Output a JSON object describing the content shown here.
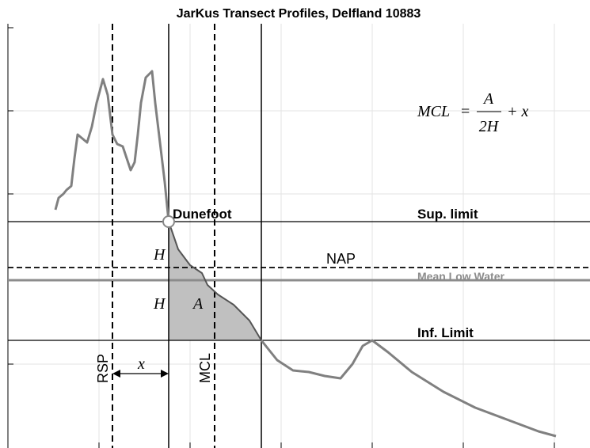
{
  "header": {
    "title": "JarKus Transect Profiles, Delfland 10883"
  },
  "labels": {
    "dunefoot": "Dunefoot",
    "sup_limit": "Sup. limit",
    "nap": "NAP",
    "mlw": "Mean Low Water",
    "inf_limit": "Inf. Limit",
    "rsp": "RSP",
    "mcl": "MCL",
    "h_upper": "H",
    "h_lower": "H",
    "area": "A",
    "offset": "x"
  },
  "formula": {
    "lhs": "MCL",
    "eq": "=",
    "numerator": "A",
    "denominator": "2H",
    "rest": "+ x"
  }
}
